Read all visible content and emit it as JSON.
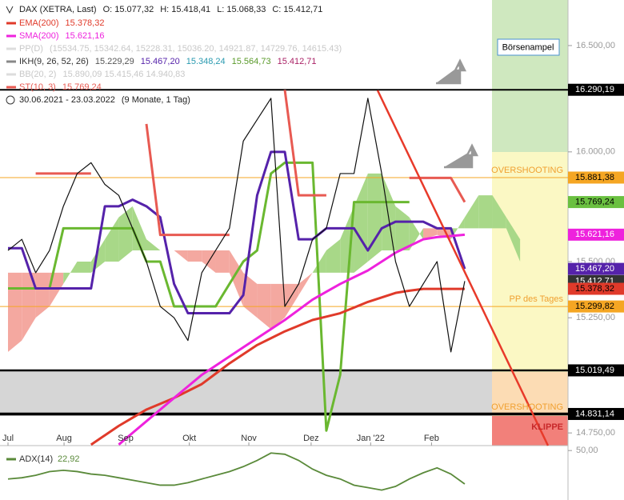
{
  "chart_data": {
    "type": "line",
    "log_scale": true,
    "title": "DAX (XETRA, Last)",
    "quote": [
      "O: 15.077,32",
      "H: 15.418,41",
      "L: 15.068,33",
      "C: 15.412,71"
    ],
    "period": "30.06.2021 - 23.03.2022",
    "period_note": "(9 Monate, 1 Tag)",
    "xlim": [
      -0.578,
      40.46
    ],
    "xticks": [
      {
        "value": 0,
        "label": "Jul"
      },
      {
        "value": 4.05,
        "label": "Aug"
      },
      {
        "value": 8.5,
        "label": "Sep"
      },
      {
        "value": 13.1,
        "label": "Okt"
      },
      {
        "value": 17.4,
        "label": "Nov"
      },
      {
        "value": 21.9,
        "label": "Dez"
      },
      {
        "value": 26.2,
        "label": "Jan '22"
      },
      {
        "value": 30.6,
        "label": "Feb"
      }
    ],
    "ylim": [
      14696,
      16719
    ],
    "yticks": [
      {
        "value": 14750,
        "label": "14.750,00"
      },
      {
        "value": 15250,
        "label": "15.250,00"
      },
      {
        "value": 15500,
        "label": "15.500,00"
      },
      {
        "value": 16000,
        "label": "16.000,00"
      },
      {
        "value": 16500,
        "label": "16.500,00"
      }
    ],
    "price": {
      "color": "#111111",
      "values": [
        15550,
        15600,
        15450,
        15550,
        15750,
        15900,
        15950,
        15850,
        15800,
        15650,
        15500,
        15300,
        15250,
        15150,
        15450,
        15550,
        15650,
        16050,
        16150,
        16250,
        15300,
        15400,
        15600,
        15650,
        15900,
        15900,
        16250,
        15900,
        15500,
        15300,
        15400,
        15500,
        15100,
        15412.71
      ]
    },
    "indicators": [
      {
        "name": "EMA(200)",
        "legend_value": "15.378,32",
        "color": "#e03a2a",
        "values": [
          null,
          null,
          null,
          null,
          null,
          null,
          14700,
          14740,
          14780,
          14815,
          14850,
          14875,
          14900,
          14930,
          14960,
          15005,
          15050,
          15090,
          15130,
          15160,
          15190,
          15215,
          15240,
          15255,
          15270,
          15295,
          15320,
          15340,
          15360,
          15370,
          15378,
          15378,
          15378,
          15378
        ]
      },
      {
        "name": "SMA(200)",
        "legend_value": "15.621,16",
        "color": "#ee22dd",
        "values": [
          null,
          null,
          null,
          null,
          null,
          null,
          null,
          null,
          14700,
          14750,
          14800,
          14850,
          14900,
          14950,
          15000,
          15040,
          15080,
          15120,
          15160,
          15200,
          15240,
          15285,
          15330,
          15365,
          15400,
          15430,
          15460,
          15500,
          15540,
          15570,
          15600,
          15610,
          15615,
          15621
        ]
      },
      {
        "name": "ST(10, 3)",
        "legend_value": "15.769,24",
        "color": "#e85a52",
        "values": [
          null,
          null,
          15900,
          15900,
          15900,
          15900,
          15900,
          null,
          null,
          null,
          16130,
          15620,
          15620,
          15620,
          15620,
          15620,
          15620,
          null,
          null,
          null,
          16290,
          15800,
          15800,
          15800,
          null,
          null,
          null,
          null,
          null,
          15880,
          15880,
          15880,
          15880,
          15769
        ]
      }
    ],
    "disabled_indicators": [
      {
        "name": "PP(D)",
        "legend_value": "(15534.75, 15342.64, 15228.31, 15036.20, 14921.87, 14729.76, 14615.43)"
      },
      {
        "name": "BB(20, 2)",
        "legend_value": "15.890,09  15.415,46  14.940,83"
      }
    ],
    "ikh": {
      "name": "IKH(9, 26, 52, 26)",
      "legend_values": [
        {
          "text": "15.229,29",
          "color": "#555555"
        },
        {
          "text": "15.467,20",
          "color": "#5522aa"
        },
        {
          "text": "15.348,24",
          "color": "#2a9ab0"
        },
        {
          "text": "15.564,73",
          "color": "#5a9a2a"
        },
        {
          "text": "15.412,71",
          "color": "#aa2266"
        }
      ],
      "tenkan": {
        "color": "#5522aa",
        "values": [
          15560,
          15560,
          15380,
          15380,
          15380,
          15380,
          15380,
          15750,
          15750,
          15780,
          15750,
          15700,
          15400,
          15270,
          15270,
          15270,
          15270,
          15350,
          15800,
          16000,
          16000,
          15600,
          15600,
          15650,
          15650,
          15650,
          15550,
          15650,
          15680,
          15680,
          15680,
          15650,
          15650,
          15467.2
        ]
      },
      "kijun": {
        "color": "#6ab830",
        "values": [
          15380,
          15380,
          15380,
          15380,
          15650,
          15650,
          15650,
          15650,
          15650,
          15650,
          15500,
          15500,
          15300,
          15300,
          15300,
          15300,
          15400,
          15500,
          15550,
          15900,
          15950,
          15950,
          15950,
          14760,
          15000,
          15769,
          15769,
          15769,
          15769,
          15769,
          null,
          null,
          null,
          null
        ]
      },
      "cloud_a": [
        15100,
        15150,
        15250,
        15300,
        15400,
        15500,
        15500,
        15600,
        15700,
        15750,
        15600,
        15550,
        15550,
        15500,
        15500,
        15450,
        15450,
        15300,
        15250,
        15200,
        15250,
        15350,
        15450,
        15550,
        15600,
        15750,
        15900,
        15900,
        15750,
        15700,
        15600,
        15620,
        15600,
        15700,
        15800,
        15800,
        15700,
        15600
      ],
      "cloud_b": [
        15450,
        15450,
        15450,
        15450,
        15450,
        15450,
        15450,
        15500,
        15500,
        15550,
        15550,
        15550,
        15550,
        15550,
        15550,
        15550,
        15550,
        15450,
        15400,
        15400,
        15400,
        15400,
        15450,
        15450,
        15450,
        15450,
        15500,
        15550,
        15550,
        15550,
        15650,
        15650,
        15650,
        15650,
        15650,
        15650,
        15650,
        15500
      ],
      "cloud_up_color": "#a8d888",
      "cloud_down_color": "#f4a8a0"
    },
    "levels": [
      {
        "value": 16290.19,
        "label": "16.290,19",
        "color": "#000000",
        "text_color": "#ffffff",
        "line": 2
      },
      {
        "value": 15881.38,
        "label": "15.881,38",
        "color": "#f5a623",
        "text_color": "#000000",
        "line": 1
      },
      {
        "value": 15769.24,
        "label": "15.769,24",
        "color": "#6ac040",
        "text_color": "#000000"
      },
      {
        "value": 15621.16,
        "label": "15.621,16",
        "color": "#ee22dd",
        "text_color": "#ffffff"
      },
      {
        "value": 15467.2,
        "label": "15.467,20",
        "color": "#5522aa",
        "text_color": "#ffffff"
      },
      {
        "value": 15412.71,
        "label": "15.412,71",
        "color": "#333333",
        "text_color": "#ffffff"
      },
      {
        "value": 15378.32,
        "label": "15.378,32",
        "color": "#e03a2a",
        "text_color": "#000000"
      },
      {
        "value": 15299.82,
        "label": "15.299,82",
        "color": "#f5a623",
        "text_color": "#000000",
        "line": 1
      },
      {
        "value": 15019.49,
        "label": "15.019,49",
        "color": "#000000",
        "text_color": "#ffffff",
        "line": 2.5
      },
      {
        "value": 14831.14,
        "label": "14.831,14",
        "color": "#000000",
        "text_color": "#ffffff",
        "line": 3.5
      }
    ],
    "annotations": [
      {
        "text": "OVERSHOOTING",
        "color": "#f0a030"
      },
      {
        "text": "PP des Tages",
        "color": "#f0a030"
      },
      {
        "text": "OVERSHOOTING",
        "color": "#f0a030"
      },
      {
        "text": "KLIPPE",
        "color": "#c8282a"
      },
      {
        "text": "Börsenampel",
        "color": "#000000"
      }
    ],
    "adx": {
      "name": "ADX(14)",
      "legend_value": "22,92",
      "color": "#5a8a3a",
      "ylim": [
        10,
        54
      ],
      "yticks": [
        {
          "value": 50,
          "label": "50,00"
        }
      ],
      "values": [
        27,
        28,
        30,
        33,
        34,
        33,
        31,
        30,
        28,
        26,
        24,
        22,
        22,
        24,
        27,
        30,
        33,
        37,
        42,
        48,
        47,
        42,
        35,
        30,
        27,
        22,
        20,
        18,
        21,
        27,
        32,
        36,
        31,
        22.92
      ]
    }
  }
}
